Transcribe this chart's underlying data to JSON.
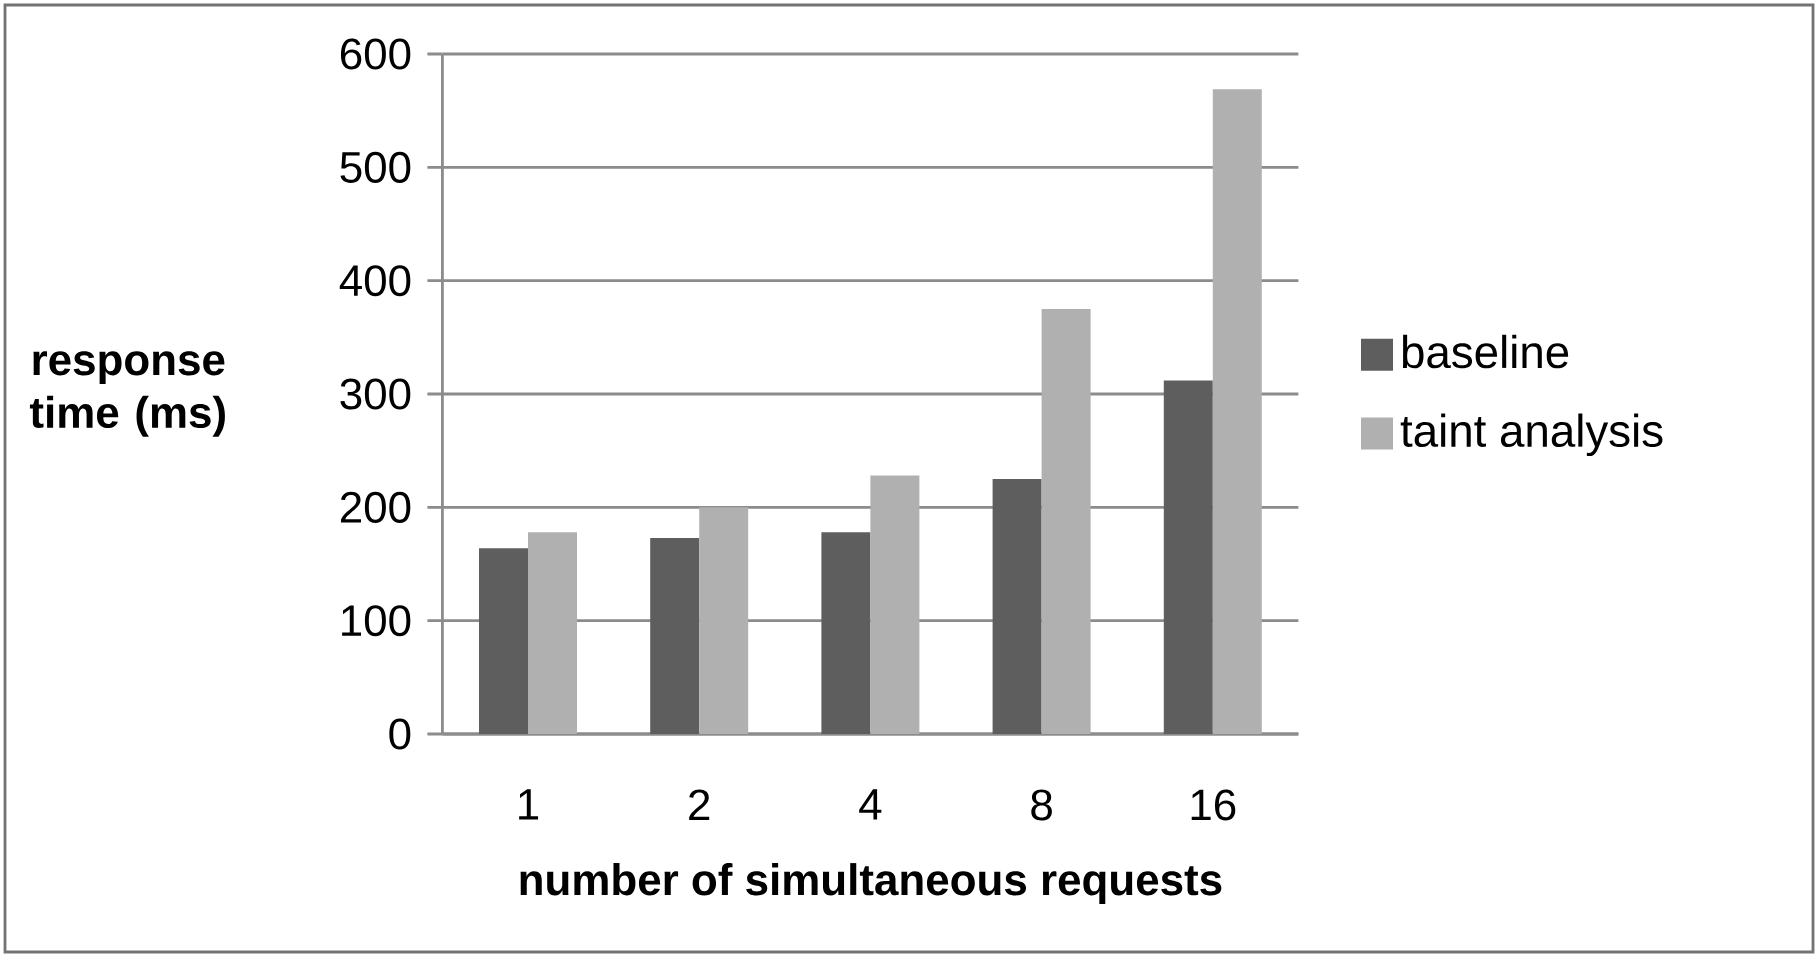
{
  "chart_data": {
    "type": "bar",
    "xlabel": "number of simultaneous  requests",
    "ylabel": "response time (ms)",
    "categories": [
      "1",
      "2",
      "4",
      "8",
      "16"
    ],
    "series": [
      {
        "name": "baseline",
        "color": "#5e5e5e",
        "values": [
          164,
          173,
          178,
          225,
          312
        ]
      },
      {
        "name": "taint analysis",
        "color": "#b0b0b0",
        "values": [
          178,
          200,
          228,
          375,
          569
        ]
      }
    ],
    "ylim": [
      0,
      600
    ],
    "yticks": [
      0,
      100,
      200,
      300,
      400,
      500,
      600
    ],
    "grid": "y",
    "legend": "right"
  }
}
